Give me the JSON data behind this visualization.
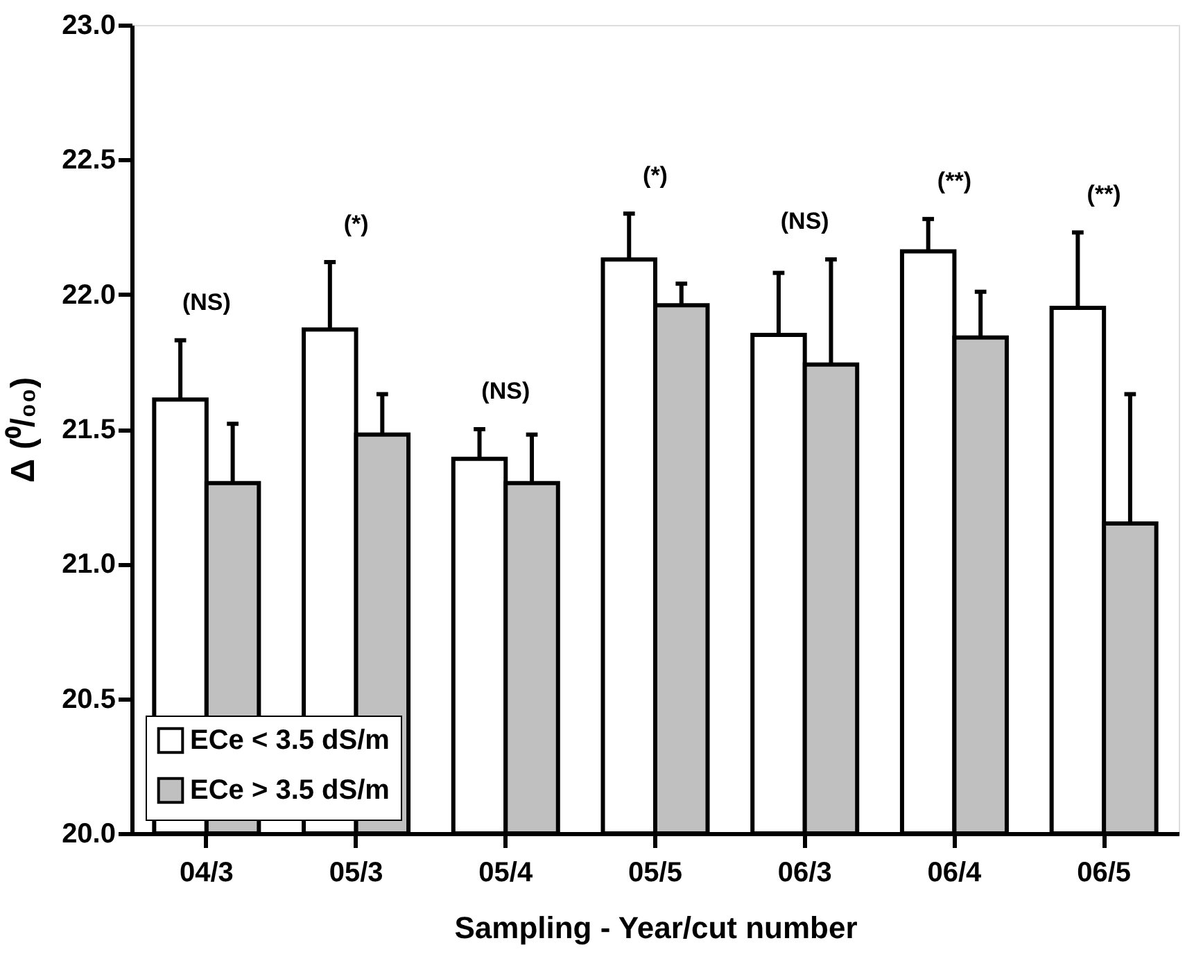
{
  "chart_data": {
    "type": "bar",
    "xlabel": "Sampling - Year/cut number",
    "ylabel": "Δ (⁰/₀₀)",
    "categories": [
      "04/3",
      "05/3",
      "05/4",
      "05/5",
      "06/3",
      "06/4",
      "06/5"
    ],
    "series": [
      {
        "name": "ECe < 3.5 dS/m",
        "color": "#ffffff",
        "values": [
          21.61,
          21.87,
          21.39,
          22.13,
          21.85,
          22.16,
          21.95
        ],
        "errors": [
          [
            21.61,
            21.83
          ],
          [
            21.87,
            22.12
          ],
          [
            21.39,
            21.5
          ],
          [
            22.13,
            22.3
          ],
          [
            21.85,
            22.08
          ],
          [
            22.16,
            22.28
          ],
          [
            21.95,
            22.23
          ]
        ]
      },
      {
        "name": "ECe > 3.5 dS/m",
        "color": "#c0c0c0",
        "values": [
          21.3,
          21.48,
          21.3,
          21.96,
          21.74,
          21.84,
          21.15
        ],
        "errors": [
          [
            21.3,
            21.52
          ],
          [
            21.48,
            21.63
          ],
          [
            21.3,
            21.48
          ],
          [
            21.96,
            22.04
          ],
          [
            21.74,
            22.13
          ],
          [
            21.84,
            22.01
          ],
          [
            21.15,
            21.63
          ]
        ]
      }
    ],
    "ylim": [
      20.0,
      23.0
    ],
    "yticks": [
      {
        "value": 20,
        "label": "20.0"
      },
      20.5,
      {
        "value": 21,
        "label": "21.0"
      },
      21.5,
      {
        "value": 22,
        "label": "22.0"
      },
      22.5,
      {
        "value": 23,
        "label": "23.0"
      }
    ],
    "annotations": [
      "(NS)",
      "(*)",
      "(NS)",
      "(*)",
      "(NS)",
      "(**)",
      "(**)"
    ],
    "grid": false,
    "legend": "bottom left"
  }
}
